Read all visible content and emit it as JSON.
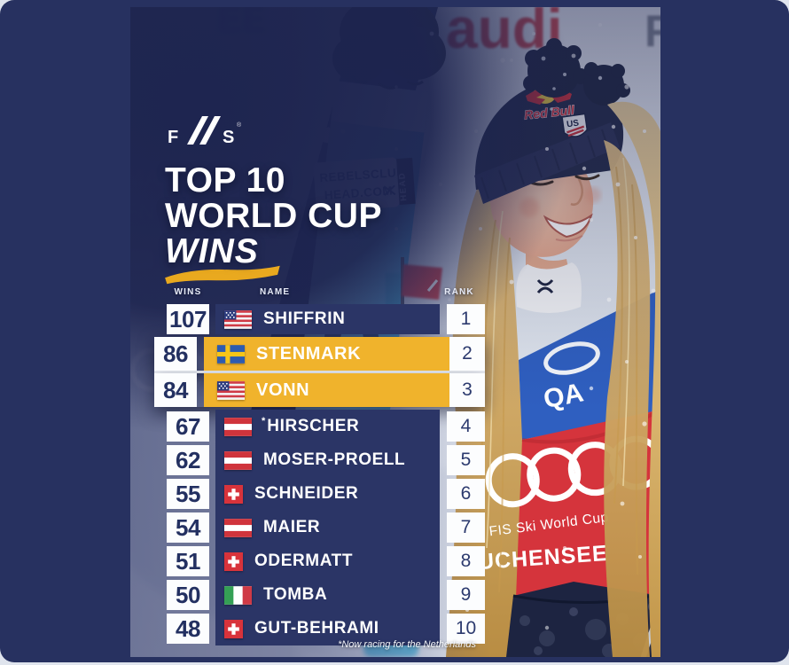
{
  "fis_logo": {
    "f": "F",
    "s": "S",
    "reg": "®"
  },
  "title": {
    "line1": "TOP 10",
    "line2": "WORLD CUP",
    "line3": "WINS"
  },
  "table": {
    "headers": {
      "wins": "WINS",
      "name": "NAME",
      "rank": "RANK"
    },
    "rows": [
      {
        "wins": "107",
        "name": "SHIFFRIN",
        "country": "us",
        "rank": "1",
        "highlighted": false,
        "note": ""
      },
      {
        "wins": "86",
        "name": "STENMARK",
        "country": "se",
        "rank": "2",
        "highlighted": true,
        "note": ""
      },
      {
        "wins": "84",
        "name": "VONN",
        "country": "us",
        "rank": "3",
        "highlighted": true,
        "note": ""
      },
      {
        "wins": "67",
        "name": "HIRSCHER",
        "country": "at",
        "rank": "4",
        "highlighted": false,
        "note": "*"
      },
      {
        "wins": "62",
        "name": "MOSER-PROELL",
        "country": "at",
        "rank": "5",
        "highlighted": false,
        "note": ""
      },
      {
        "wins": "55",
        "name": "SCHNEIDER",
        "country": "ch",
        "rank": "6",
        "highlighted": false,
        "note": ""
      },
      {
        "wins": "54",
        "name": "MAIER",
        "country": "at",
        "rank": "7",
        "highlighted": false,
        "note": ""
      },
      {
        "wins": "51",
        "name": "ODERMATT",
        "country": "ch",
        "rank": "8",
        "highlighted": false,
        "note": ""
      },
      {
        "wins": "50",
        "name": "TOMBA",
        "country": "it",
        "rank": "9",
        "highlighted": false,
        "note": ""
      },
      {
        "wins": "48",
        "name": "GUT-BEHRAMI",
        "country": "ch",
        "rank": "10",
        "highlighted": false,
        "note": ""
      }
    ]
  },
  "footnote": "*Now racing for the Netherlands",
  "photo": {
    "backdrop_text_audi": "audi",
    "backdrop_letter_right": "F",
    "backdrop_text_blur": "EE",
    "faint_text_1": "MA",
    "faint_text_2": "FN",
    "ski_sticker_line1": "REBELSCLUB.",
    "ski_sticker_line2": "HEAD.COM",
    "ski_tag_brand": "HEAD",
    "ski_graphic_number": "9",
    "ski_letter_top": "T",
    "ski_letter_bottom": "A",
    "beanie_brand": "Red Bull",
    "shield_text": "US",
    "bib_top_letters": "QA",
    "bib_series_text": "FIS Ski World Cup",
    "bib_event_text": "UCHENSEE"
  },
  "colors": {
    "card_navy": "#273160",
    "row_navy": "#2b3566",
    "accent_yellow": "#f0b32c",
    "number_navy": "#233061",
    "bib_red": "#d5343c",
    "bib_blue": "#2f5fc0"
  }
}
